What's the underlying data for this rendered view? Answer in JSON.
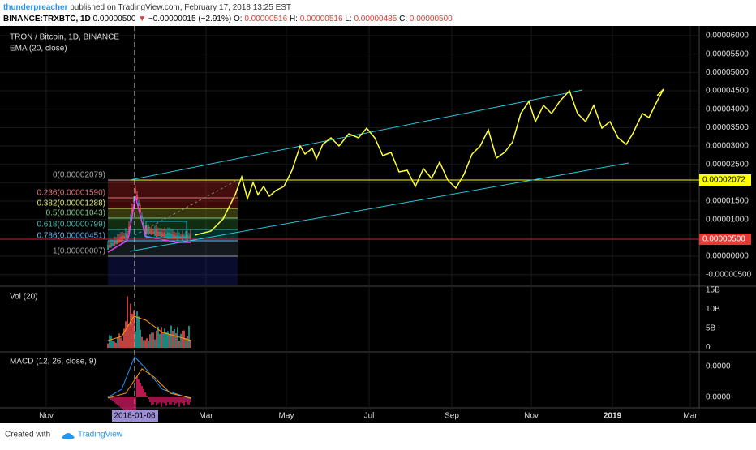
{
  "header": {
    "author": "thunderpreacher",
    "published": "published on TradingView.com, February 17, 2018 13:25 EST",
    "symbol": "BINANCE:TRXBTC, 1D",
    "last": "0.00000500",
    "arrow": "▼",
    "change": "−0.00000015 (−2.91%)",
    "ohlc": [
      {
        "k": "O:",
        "v": "0.00000516"
      },
      {
        "k": "H:",
        "v": "0.00000516"
      },
      {
        "k": "L:",
        "v": "0.00000485"
      },
      {
        "k": "C:",
        "v": "0.00000500"
      }
    ]
  },
  "main_pane": {
    "title": "TRON / Bitcoin, 1D, BINANCE",
    "indicator": "EMA (20, close)"
  },
  "price_axis": [
    "0.00006000",
    "0.00005500",
    "0.00005000",
    "0.00004500",
    "0.00004000",
    "0.00003500",
    "0.00003000",
    "0.00002500",
    "0.00002000",
    "0.00001500",
    "0.00001000",
    "0.00000500",
    "0.00000000",
    "-0.00000500"
  ],
  "price_tags": {
    "level": "0.00002072",
    "current": "0.00000500"
  },
  "fib_levels": [
    "0(0.00002079)",
    "0.236(0.00001590)",
    "0.382(0.00001288)",
    "0.5(0.00001043)",
    "0.618(0.00000799)",
    "0.786(0.00000451)",
    "1(0.00000007)"
  ],
  "volume_pane": {
    "title": "Vol (20)",
    "axis": [
      "15B",
      "10B",
      "5B",
      "0"
    ]
  },
  "macd_pane": {
    "title": "MACD (12, 26, close, 9)",
    "axis": [
      "0.0000",
      "0.0000"
    ]
  },
  "time_axis": [
    "Nov",
    "2018-01-06",
    "Mar",
    "May",
    "Jul",
    "Sep",
    "Nov",
    "2019",
    "Mar"
  ],
  "footer": {
    "created": "Created with",
    "brand": "TradingView"
  }
}
